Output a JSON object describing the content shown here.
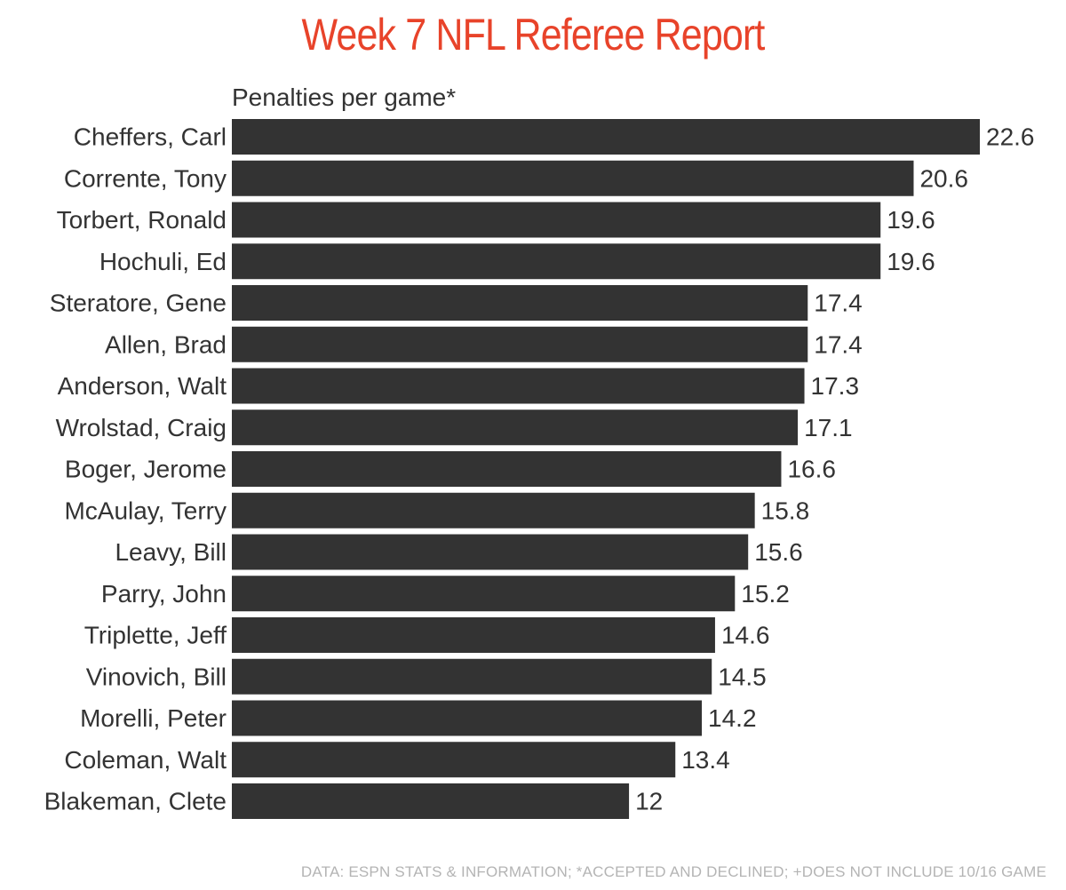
{
  "chart_data": {
    "type": "bar",
    "orientation": "horizontal",
    "title": "Week 7 NFL Referee Report",
    "subtitle": "Penalties per game*",
    "categories": [
      "Cheffers, Carl",
      "Corrente, Tony",
      "Torbert, Ronald",
      "Hochuli, Ed",
      "Steratore, Gene",
      "Allen, Brad",
      "Anderson, Walt",
      "Wrolstad, Craig",
      "Boger, Jerome",
      "McAulay, Terry",
      "Leavy, Bill",
      "Parry, John",
      "Triplette, Jeff",
      "Vinovich, Bill",
      "Morelli, Peter",
      "Coleman, Walt",
      "Blakeman, Clete"
    ],
    "values": [
      22.6,
      20.6,
      19.6,
      19.6,
      17.4,
      17.4,
      17.3,
      17.1,
      16.6,
      15.8,
      15.6,
      15.2,
      14.6,
      14.5,
      14.2,
      13.4,
      12
    ],
    "value_labels": [
      "22.6",
      "20.6",
      "19.6",
      "19.6",
      "17.4",
      "17.4",
      "17.3",
      "17.1",
      "16.6",
      "15.8",
      "15.6",
      "15.2",
      "14.6",
      "14.5",
      "14.2",
      "13.4",
      "12"
    ],
    "xlim": [
      0,
      22.6
    ],
    "grid": false,
    "bar_color": "#333333",
    "title_color": "#e8432a",
    "label_color": "#333333",
    "note_color": "#b4b4b4",
    "source_note": "DATA: ESPN STATS & INFORMATION; *ACCEPTED AND DECLINED; +DOES NOT INCLUDE 10/16 GAME"
  }
}
